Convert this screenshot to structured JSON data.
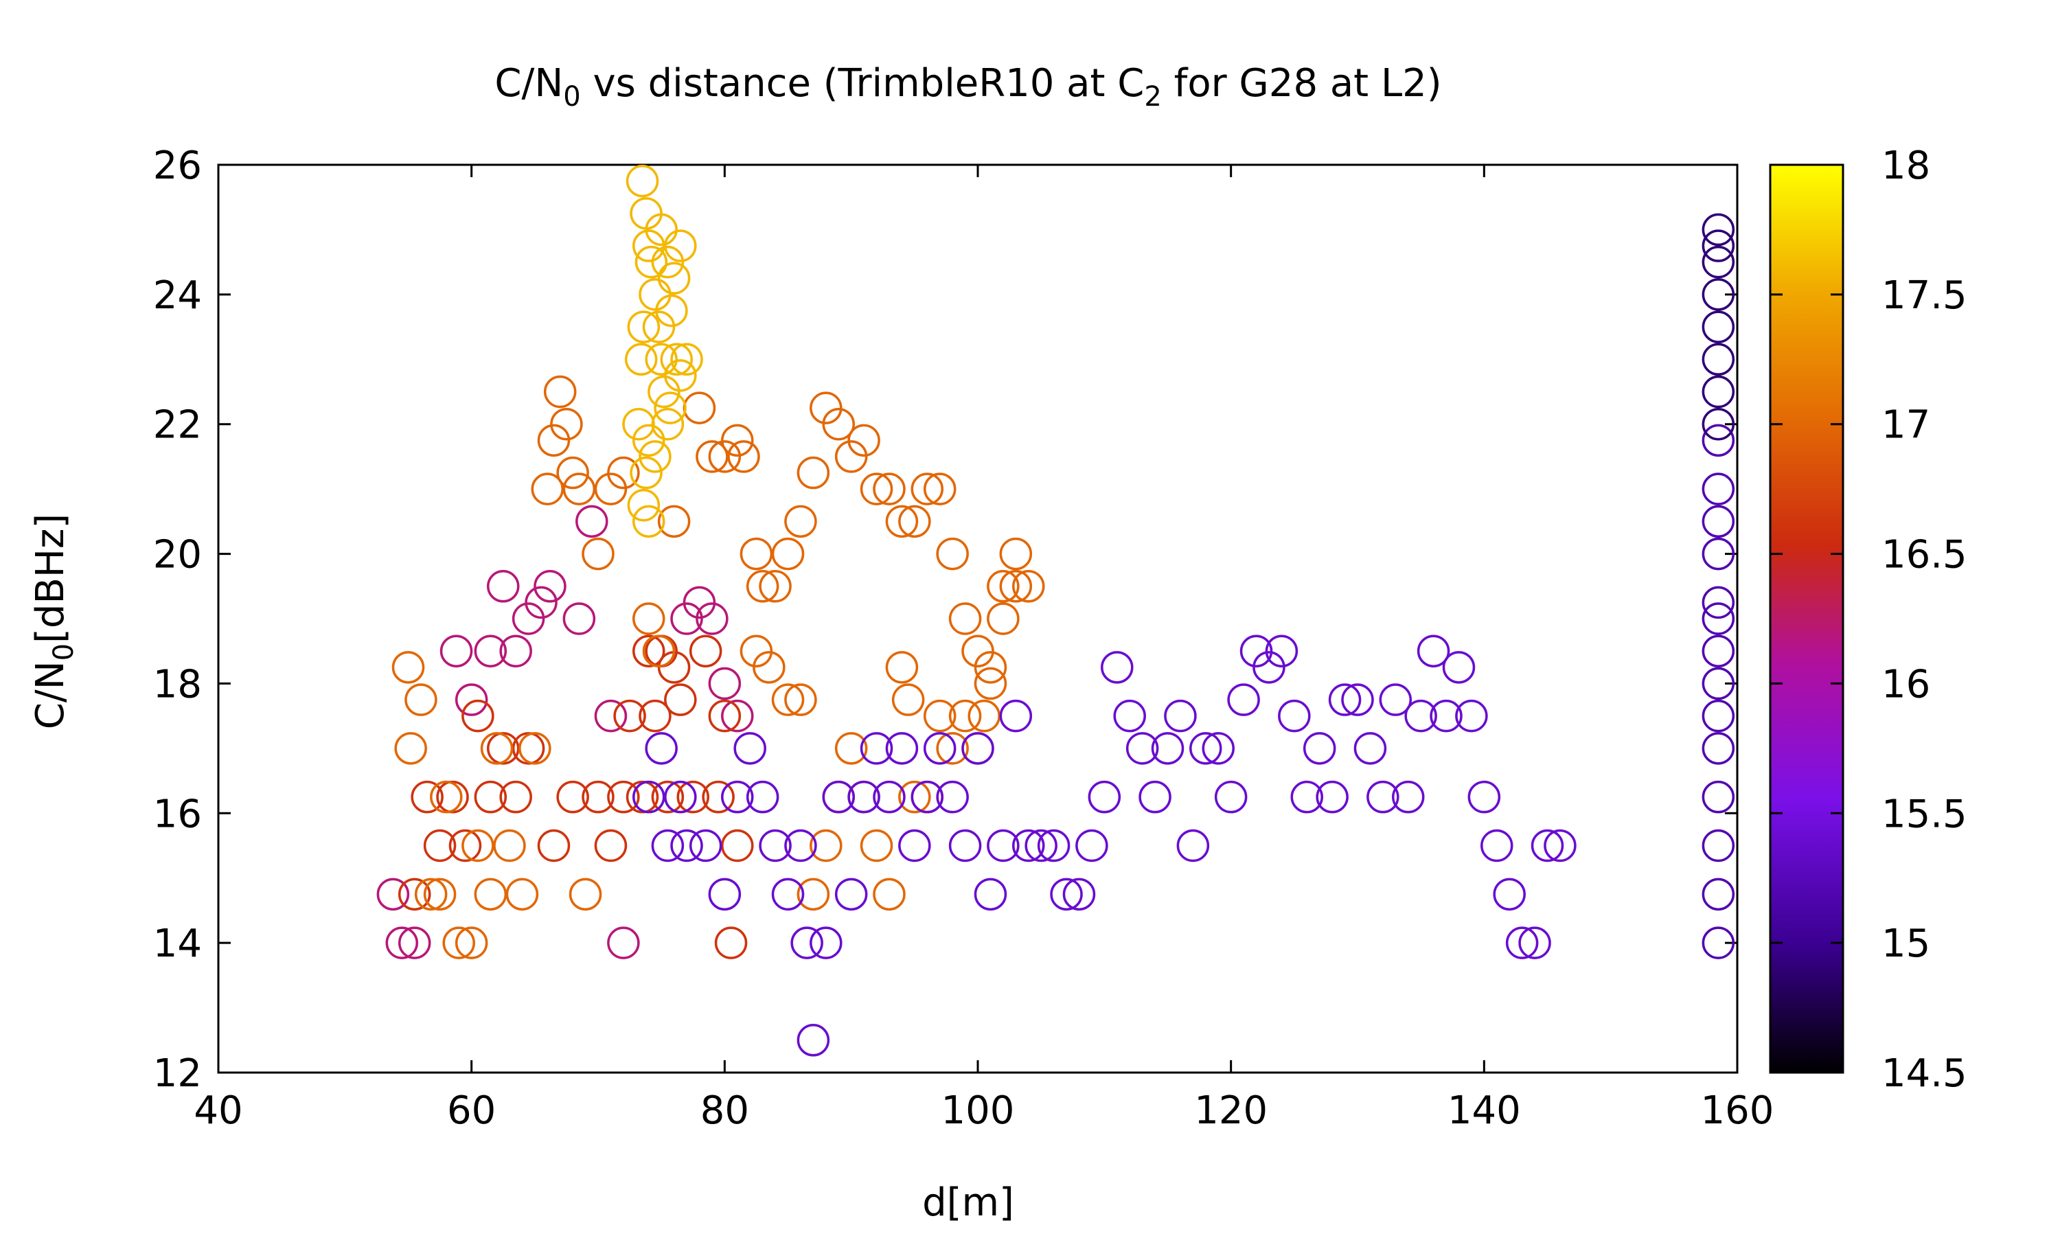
{
  "chart_data": {
    "type": "scatter",
    "title": "C/N",
    "title_sub": "0",
    "title_mid": " vs distance (TrimbleR10 at C",
    "title_sub2": "2",
    "title_end": " for G28 at L2)",
    "xlabel": "d[m]",
    "ylabel_main": "C/N",
    "ylabel_sub": "0",
    "ylabel_end": "[dBHz]",
    "xlim": [
      40,
      160
    ],
    "ylim": [
      12,
      26
    ],
    "xticks": [
      "40",
      "60",
      "80",
      "100",
      "120",
      "140",
      "160"
    ],
    "yticks": [
      "12",
      "14",
      "16",
      "18",
      "20",
      "22",
      "24",
      "26"
    ],
    "colorbar": {
      "range": [
        14.5,
        18
      ],
      "ticks": [
        "14.5",
        "15",
        "15.5",
        "16",
        "16.5",
        "17",
        "17.5",
        "18"
      ],
      "palette": [
        "#000000",
        "#3a0090",
        "#7a10e8",
        "#b0109e",
        "#cc2a10",
        "#e36a05",
        "#f0a800",
        "#ffff00"
      ]
    },
    "point_groups": [
      {
        "color_value": 16.2,
        "points": [
          [
            53.8,
            14.75
          ],
          [
            54.5,
            14
          ],
          [
            55.5,
            14
          ],
          [
            58.8,
            18.5
          ],
          [
            60,
            17.75
          ],
          [
            61.5,
            18.5
          ],
          [
            62.5,
            19.5
          ],
          [
            63.5,
            18.5
          ],
          [
            64.5,
            19
          ],
          [
            65.5,
            19.25
          ],
          [
            66.2,
            19.5
          ],
          [
            68.5,
            19
          ],
          [
            69.5,
            20.5
          ],
          [
            71,
            17.5
          ],
          [
            72,
            14
          ],
          [
            77,
            19
          ],
          [
            78,
            19.25
          ],
          [
            79,
            19
          ],
          [
            80,
            18
          ],
          [
            81,
            17.5
          ]
        ]
      },
      {
        "color_value": 16.6,
        "points": [
          [
            55.5,
            14.75
          ],
          [
            56.5,
            16.25
          ],
          [
            57.5,
            15.5
          ],
          [
            58.5,
            16.25
          ],
          [
            59.5,
            15.5
          ],
          [
            60.5,
            17.5
          ],
          [
            61.5,
            16.25
          ],
          [
            62.5,
            17
          ],
          [
            63.5,
            16.25
          ],
          [
            64.5,
            17
          ],
          [
            66.5,
            15.5
          ],
          [
            68,
            16.25
          ],
          [
            70,
            16.25
          ],
          [
            71,
            15.5
          ],
          [
            72,
            16.25
          ],
          [
            72.5,
            17.5
          ],
          [
            73.5,
            16.25
          ],
          [
            74.5,
            17.5
          ],
          [
            75.5,
            16.25
          ],
          [
            76.5,
            17.75
          ],
          [
            77.5,
            16.25
          ],
          [
            78.5,
            18.5
          ],
          [
            79.5,
            16.25
          ],
          [
            80,
            17.5
          ],
          [
            80.5,
            14
          ],
          [
            81,
            15.5
          ],
          [
            74,
            18.5
          ],
          [
            75,
            18.5
          ],
          [
            76,
            18.25
          ]
        ]
      },
      {
        "color_value": 17.0,
        "points": [
          [
            55,
            18.25
          ],
          [
            55.2,
            17
          ],
          [
            56,
            17.75
          ],
          [
            56.8,
            14.75
          ],
          [
            57.5,
            14.75
          ],
          [
            58,
            16.25
          ],
          [
            59,
            14
          ],
          [
            60,
            14
          ],
          [
            60.5,
            15.5
          ],
          [
            61.5,
            14.75
          ],
          [
            62,
            17
          ],
          [
            63,
            15.5
          ],
          [
            64,
            14.75
          ],
          [
            65,
            17
          ],
          [
            66,
            21
          ],
          [
            66.5,
            21.75
          ],
          [
            67,
            22.5
          ],
          [
            67.5,
            22
          ],
          [
            68,
            21.25
          ],
          [
            68.5,
            21
          ],
          [
            69,
            14.75
          ],
          [
            70,
            20
          ],
          [
            71,
            21
          ],
          [
            72,
            21.25
          ],
          [
            74,
            19
          ],
          [
            74.8,
            18.5
          ],
          [
            76,
            20.5
          ],
          [
            78,
            22.25
          ],
          [
            79,
            21.5
          ],
          [
            80,
            21.5
          ],
          [
            81,
            21.75
          ],
          [
            81.5,
            21.5
          ],
          [
            82.5,
            20
          ],
          [
            83,
            19.5
          ],
          [
            84,
            19.5
          ],
          [
            85,
            20
          ],
          [
            86,
            20.5
          ],
          [
            87,
            21.25
          ],
          [
            88,
            22.25
          ],
          [
            89,
            22
          ],
          [
            90,
            21.5
          ],
          [
            91,
            21.75
          ],
          [
            92,
            21
          ],
          [
            93,
            21
          ],
          [
            94,
            20.5
          ],
          [
            95,
            20.5
          ],
          [
            96,
            21
          ],
          [
            97,
            21
          ],
          [
            98,
            20
          ],
          [
            99,
            19
          ],
          [
            100,
            18.5
          ],
          [
            101,
            18.25
          ],
          [
            102,
            19
          ],
          [
            103,
            19.5
          ],
          [
            104,
            19.5
          ],
          [
            103,
            20
          ],
          [
            102,
            19.5
          ],
          [
            82.5,
            18.5
          ],
          [
            83.5,
            18.25
          ],
          [
            85,
            17.75
          ],
          [
            86,
            17.75
          ],
          [
            87,
            14.75
          ],
          [
            88,
            15.5
          ],
          [
            89,
            16.25
          ],
          [
            90,
            17
          ],
          [
            91,
            16.25
          ],
          [
            92,
            15.5
          ],
          [
            93,
            14.75
          ],
          [
            94,
            18.25
          ],
          [
            94.5,
            17.75
          ],
          [
            95,
            16.25
          ],
          [
            96,
            16.25
          ],
          [
            97,
            17.5
          ],
          [
            98,
            17
          ],
          [
            99,
            17.5
          ],
          [
            100,
            17
          ],
          [
            100.5,
            17.5
          ],
          [
            101,
            18
          ]
        ]
      },
      {
        "color_value": 17.6,
        "points": [
          [
            73.5,
            25.75
          ],
          [
            73.8,
            25.25
          ],
          [
            74,
            24.75
          ],
          [
            74.2,
            24.5
          ],
          [
            74.5,
            24
          ],
          [
            74.8,
            23.5
          ],
          [
            75,
            23
          ],
          [
            75.2,
            22.5
          ],
          [
            75.5,
            22
          ],
          [
            74,
            21.75
          ],
          [
            73.8,
            21.25
          ],
          [
            73.6,
            20.75
          ],
          [
            74,
            20.5
          ],
          [
            74.5,
            21.5
          ],
          [
            75,
            25
          ],
          [
            75.5,
            24.5
          ],
          [
            76,
            24.25
          ],
          [
            75.8,
            23.75
          ],
          [
            76.2,
            23
          ],
          [
            76.5,
            22.75
          ],
          [
            75.7,
            22.25
          ],
          [
            73.4,
            23
          ],
          [
            73.6,
            23.5
          ],
          [
            73.2,
            22
          ],
          [
            76.5,
            24.75
          ],
          [
            77,
            23
          ]
        ]
      },
      {
        "color_value": 15.4,
        "points": [
          [
            74,
            16.25
          ],
          [
            75,
            17
          ],
          [
            75.5,
            15.5
          ],
          [
            76.5,
            16.25
          ],
          [
            77,
            15.5
          ],
          [
            78.5,
            15.5
          ],
          [
            80,
            14.75
          ],
          [
            81,
            16.25
          ],
          [
            82,
            17
          ],
          [
            83,
            16.25
          ],
          [
            84,
            15.5
          ],
          [
            85,
            14.75
          ],
          [
            86,
            15.5
          ],
          [
            86.5,
            14
          ],
          [
            87,
            12.5
          ],
          [
            88,
            14
          ],
          [
            89,
            16.25
          ],
          [
            90,
            14.75
          ],
          [
            91,
            16.25
          ],
          [
            92,
            17
          ],
          [
            93,
            16.25
          ],
          [
            94,
            17
          ],
          [
            95,
            15.5
          ],
          [
            96,
            16.25
          ],
          [
            97,
            17
          ],
          [
            98,
            16.25
          ],
          [
            99,
            15.5
          ],
          [
            100,
            17
          ],
          [
            101,
            14.75
          ],
          [
            102,
            15.5
          ],
          [
            103,
            17.5
          ],
          [
            104,
            15.5
          ],
          [
            105,
            15.5
          ],
          [
            106,
            15.5
          ],
          [
            107,
            14.75
          ],
          [
            108,
            14.75
          ],
          [
            109,
            15.5
          ],
          [
            110,
            16.25
          ],
          [
            111,
            18.25
          ],
          [
            112,
            17.5
          ],
          [
            113,
            17
          ],
          [
            114,
            16.25
          ],
          [
            115,
            17
          ],
          [
            116,
            17.5
          ],
          [
            117,
            15.5
          ],
          [
            118,
            17
          ],
          [
            119,
            17
          ],
          [
            120,
            16.25
          ],
          [
            121,
            17.75
          ],
          [
            122,
            18.5
          ],
          [
            123,
            18.25
          ],
          [
            124,
            18.5
          ],
          [
            125,
            17.5
          ],
          [
            126,
            16.25
          ],
          [
            127,
            17
          ],
          [
            128,
            16.25
          ],
          [
            129,
            17.75
          ],
          [
            130,
            17.75
          ],
          [
            131,
            17
          ],
          [
            132,
            16.25
          ],
          [
            133,
            17.75
          ],
          [
            134,
            16.25
          ],
          [
            135,
            17.5
          ],
          [
            136,
            18.5
          ],
          [
            137,
            17.5
          ],
          [
            138,
            18.25
          ],
          [
            139,
            17.5
          ],
          [
            140,
            16.25
          ],
          [
            141,
            15.5
          ],
          [
            142,
            14.75
          ],
          [
            143,
            14
          ],
          [
            144,
            14
          ],
          [
            145,
            15.5
          ],
          [
            146,
            15.5
          ]
        ]
      },
      {
        "color_value": 15.2,
        "points": [
          [
            158.5,
            14
          ],
          [
            158.5,
            14.75
          ],
          [
            158.5,
            15.5
          ],
          [
            158.5,
            16.25
          ],
          [
            158.5,
            17
          ],
          [
            158.5,
            17.5
          ],
          [
            158.5,
            18
          ],
          [
            158.5,
            18.5
          ],
          [
            158.5,
            19
          ],
          [
            158.5,
            19.25
          ],
          [
            158.5,
            20
          ],
          [
            158.5,
            20.5
          ],
          [
            158.5,
            21
          ],
          [
            158.5,
            21.75
          ]
        ]
      },
      {
        "color_value": 14.9,
        "points": [
          [
            158.5,
            22
          ],
          [
            158.5,
            22.5
          ],
          [
            158.5,
            23
          ],
          [
            158.5,
            23.5
          ],
          [
            158.5,
            24
          ],
          [
            158.5,
            24.5
          ],
          [
            158.5,
            24.75
          ],
          [
            158.5,
            25
          ]
        ]
      }
    ]
  }
}
